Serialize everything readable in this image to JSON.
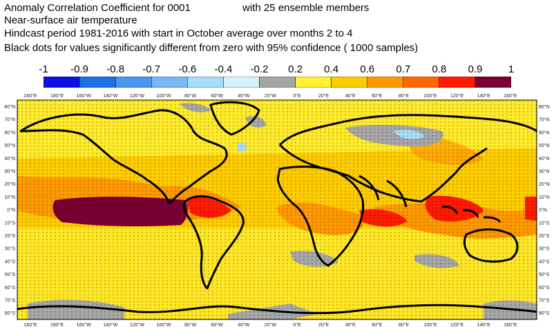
{
  "title": {
    "line1_left": "Anomaly Correlation Coefficient for 0001",
    "line1_right": "with 25 ensemble members",
    "line2": "Near-surface air temperature",
    "line3": "Hindcast period 1981-2016 with start in October average over months  2 to  4",
    "line4": "Black dots for values significantly different from zero with 95% confidence ( 1000 samples)"
  },
  "colorbar": {
    "labels": [
      "-1",
      "-0.9",
      "-0.8",
      "-0.7",
      "-0.6",
      "-0.4",
      "-0.2",
      "0.2",
      "0.4",
      "0.6",
      "0.7",
      "0.8",
      "0.9",
      "1"
    ],
    "colors": [
      "#0a10e6",
      "#1f6fe6",
      "#4a96f0",
      "#7bb6f7",
      "#a9dcf8",
      "#d6f3fb",
      "#a6a6a6",
      "#fff033",
      "#ffcc00",
      "#ff9900",
      "#ff6600",
      "#ff1a00",
      "#7a0033"
    ]
  },
  "axes": {
    "lon_labels": [
      "160°E",
      "180°E",
      "160°W",
      "140°W",
      "120°W",
      "100°W",
      "80°W",
      "60°W",
      "40°W",
      "20°W",
      "0°E",
      "20°E",
      "40°E",
      "60°E",
      "80°E",
      "100°E",
      "120°E",
      "140°E",
      "160°E"
    ],
    "lat_labels": [
      "80°N",
      "70°N",
      "60°N",
      "50°N",
      "40°N",
      "30°N",
      "20°N",
      "10°N",
      "0°N",
      "10°S",
      "20°S",
      "30°S",
      "40°S",
      "50°S",
      "60°S",
      "70°S",
      "80°S"
    ]
  }
}
